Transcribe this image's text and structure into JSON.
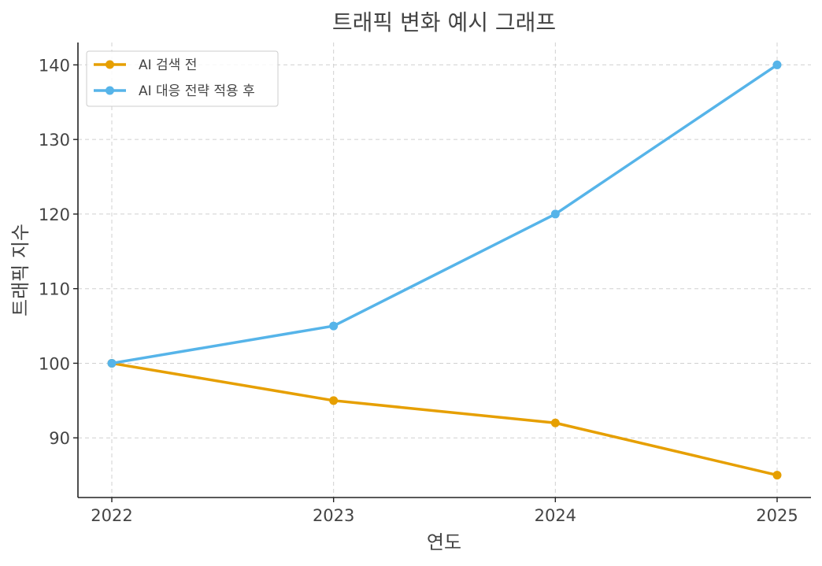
{
  "chart_data": {
    "type": "line",
    "title": "트래픽 변화 예시 그래프",
    "xlabel": "연도",
    "ylabel": "트래픽 지수",
    "categories": [
      "2022",
      "2023",
      "2024",
      "2025"
    ],
    "yticks": [
      90,
      100,
      110,
      120,
      130,
      140
    ],
    "ylim": [
      82,
      143
    ],
    "grid": true,
    "legend_position": "top-left",
    "series": [
      {
        "name": "AI 검색 전",
        "color": "#E69F00",
        "values": [
          100,
          95,
          92,
          85
        ]
      },
      {
        "name": "AI 대응 전략 적용 후",
        "color": "#56B4E9",
        "values": [
          100,
          105,
          120,
          140
        ]
      }
    ]
  }
}
